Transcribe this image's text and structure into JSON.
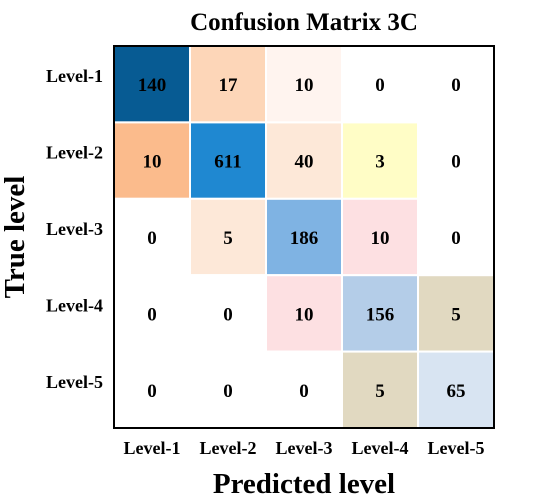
{
  "chart_data": {
    "type": "heatmap",
    "title": "Confusion Matrix 3C",
    "xlabel": "Predicted level",
    "ylabel": "True level",
    "x_categories": [
      "Level-1",
      "Level-2",
      "Level-3",
      "Level-4",
      "Level-5"
    ],
    "y_categories": [
      "Level-1",
      "Level-2",
      "Level-3",
      "Level-4",
      "Level-5"
    ],
    "values": [
      [
        140,
        17,
        10,
        0,
        0
      ],
      [
        10,
        611,
        40,
        3,
        0
      ],
      [
        0,
        5,
        186,
        10,
        0
      ],
      [
        0,
        0,
        10,
        156,
        5
      ],
      [
        0,
        0,
        0,
        5,
        65
      ]
    ],
    "cell_colors": [
      [
        "#075b93",
        "#fdd6b8",
        "#fff4ef",
        "#ffffff",
        "#ffffff"
      ],
      [
        "#fbbb8c",
        "#1f88d1",
        "#fde8d8",
        "#fffdc6",
        "#ffffff"
      ],
      [
        "#ffffff",
        "#fde8d8",
        "#7fb3e3",
        "#fde0e2",
        "#ffffff"
      ],
      [
        "#ffffff",
        "#ffffff",
        "#fde0e2",
        "#b4cde8",
        "#e1d9c1"
      ],
      [
        "#ffffff",
        "#ffffff",
        "#ffffff",
        "#e1d9c1",
        "#d8e4f2"
      ]
    ],
    "grid": false,
    "legend": "none"
  }
}
